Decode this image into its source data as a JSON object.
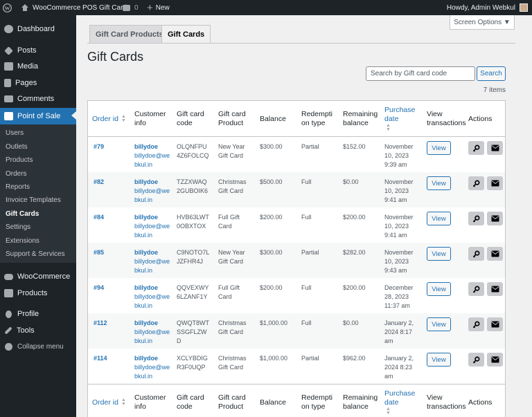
{
  "admin_bar": {
    "site_name": "WooCommerce POS Gift Card",
    "comments_count": "0",
    "new_label": "New",
    "howdy": "Howdy, Admin Webkul"
  },
  "sidebar": {
    "items": [
      {
        "label": "Dashboard",
        "icon": "dashboard-icon"
      },
      {
        "label": "Posts",
        "icon": "pin-icon"
      },
      {
        "label": "Media",
        "icon": "media-icon"
      },
      {
        "label": "Pages",
        "icon": "pages-icon"
      },
      {
        "label": "Comments",
        "icon": "comment-icon"
      },
      {
        "label": "Point of Sale",
        "icon": "pos-icon"
      },
      {
        "label": "WooCommerce",
        "icon": "woocommerce-icon"
      },
      {
        "label": "Products",
        "icon": "products-icon"
      },
      {
        "label": "Profile",
        "icon": "user-icon"
      },
      {
        "label": "Tools",
        "icon": "wrench-icon"
      },
      {
        "label": "Collapse menu",
        "icon": "collapse-icon"
      }
    ],
    "pos_submenu": [
      "Users",
      "Outlets",
      "Products",
      "Orders",
      "Reports",
      "Invoice Templates",
      "Gift Cards",
      "Settings",
      "Extensions",
      "Support & Services"
    ]
  },
  "screen_options": "Screen Options ▼",
  "tabs": [
    "Gift Card Products",
    "Gift Cards"
  ],
  "page_title": "Gift Cards",
  "search": {
    "placeholder": "Search by Gift card code",
    "button": "Search"
  },
  "items_count": "7 items",
  "columns": {
    "order_id": "Order id",
    "customer_info": "Customer info",
    "gift_card_code": "Gift card code",
    "gift_card_product": "Gift card Product",
    "balance": "Balance",
    "redemption_type": "Redemption type",
    "remaining_balance": "Remaining balance",
    "purchase_date": "Purchase date",
    "view_transactions": "View transactions",
    "actions": "Actions"
  },
  "view_label": "View",
  "rows": [
    {
      "order": "#79",
      "name": "billydoe",
      "email": "billydoe@webkul.in",
      "code": "OLQNFPU4Z6FOLCQ",
      "product": "New Year Gift Card",
      "balance": "$300.00",
      "type": "Partial",
      "remaining": "$152.00",
      "date": "November 10, 2023 9:39 am"
    },
    {
      "order": "#82",
      "name": "billydoe",
      "email": "billydoe@webkul.in",
      "code": "TZZXWAQ2GUBOIK6",
      "product": "Christmas Gift Card",
      "balance": "$500.00",
      "type": "Full",
      "remaining": "$0.00",
      "date": "November 10, 2023 9:41 am"
    },
    {
      "order": "#84",
      "name": "billydoe",
      "email": "billydoe@webkul.in",
      "code": "HVB63LWT0OBXTOX",
      "product": "Full Gift Card",
      "balance": "$200.00",
      "type": "Full",
      "remaining": "$200.00",
      "date": "November 10, 2023 9:41 am"
    },
    {
      "order": "#85",
      "name": "billydoe",
      "email": "billydoe@webkul.in",
      "code": "C9NOTO7LJZFHR4J",
      "product": "New Year Gift Card",
      "balance": "$300.00",
      "type": "Partial",
      "remaining": "$282.00",
      "date": "November 10, 2023 9:43 am"
    },
    {
      "order": "#94",
      "name": "billydoe",
      "email": "billydoe@webkul.in",
      "code": "QQVEXWY6LZANF1Y",
      "product": "Full Gift Card",
      "balance": "$200.00",
      "type": "Full",
      "remaining": "$200.00",
      "date": "December 28, 2023 11:37 am"
    },
    {
      "order": "#112",
      "name": "billydoe",
      "email": "billydoe@webkul.in",
      "code": "QWQT8WTSSGFLZWD",
      "product": "Christmas Gift Card",
      "balance": "$1,000.00",
      "type": "Full",
      "remaining": "$0.00",
      "date": "January 2, 2024 8:17 am"
    },
    {
      "order": "#114",
      "name": "billydoe",
      "email": "billydoe@webkul.in",
      "code": "XCLYBDIGR3F0UQP",
      "product": "Christmas Gift Card",
      "balance": "$1,000.00",
      "type": "Partial",
      "remaining": "$962.00",
      "date": "January 2, 2024 8:23 am"
    }
  ],
  "colors": {
    "accent": "#2271b1",
    "sidebar_bg": "#1d2327"
  }
}
